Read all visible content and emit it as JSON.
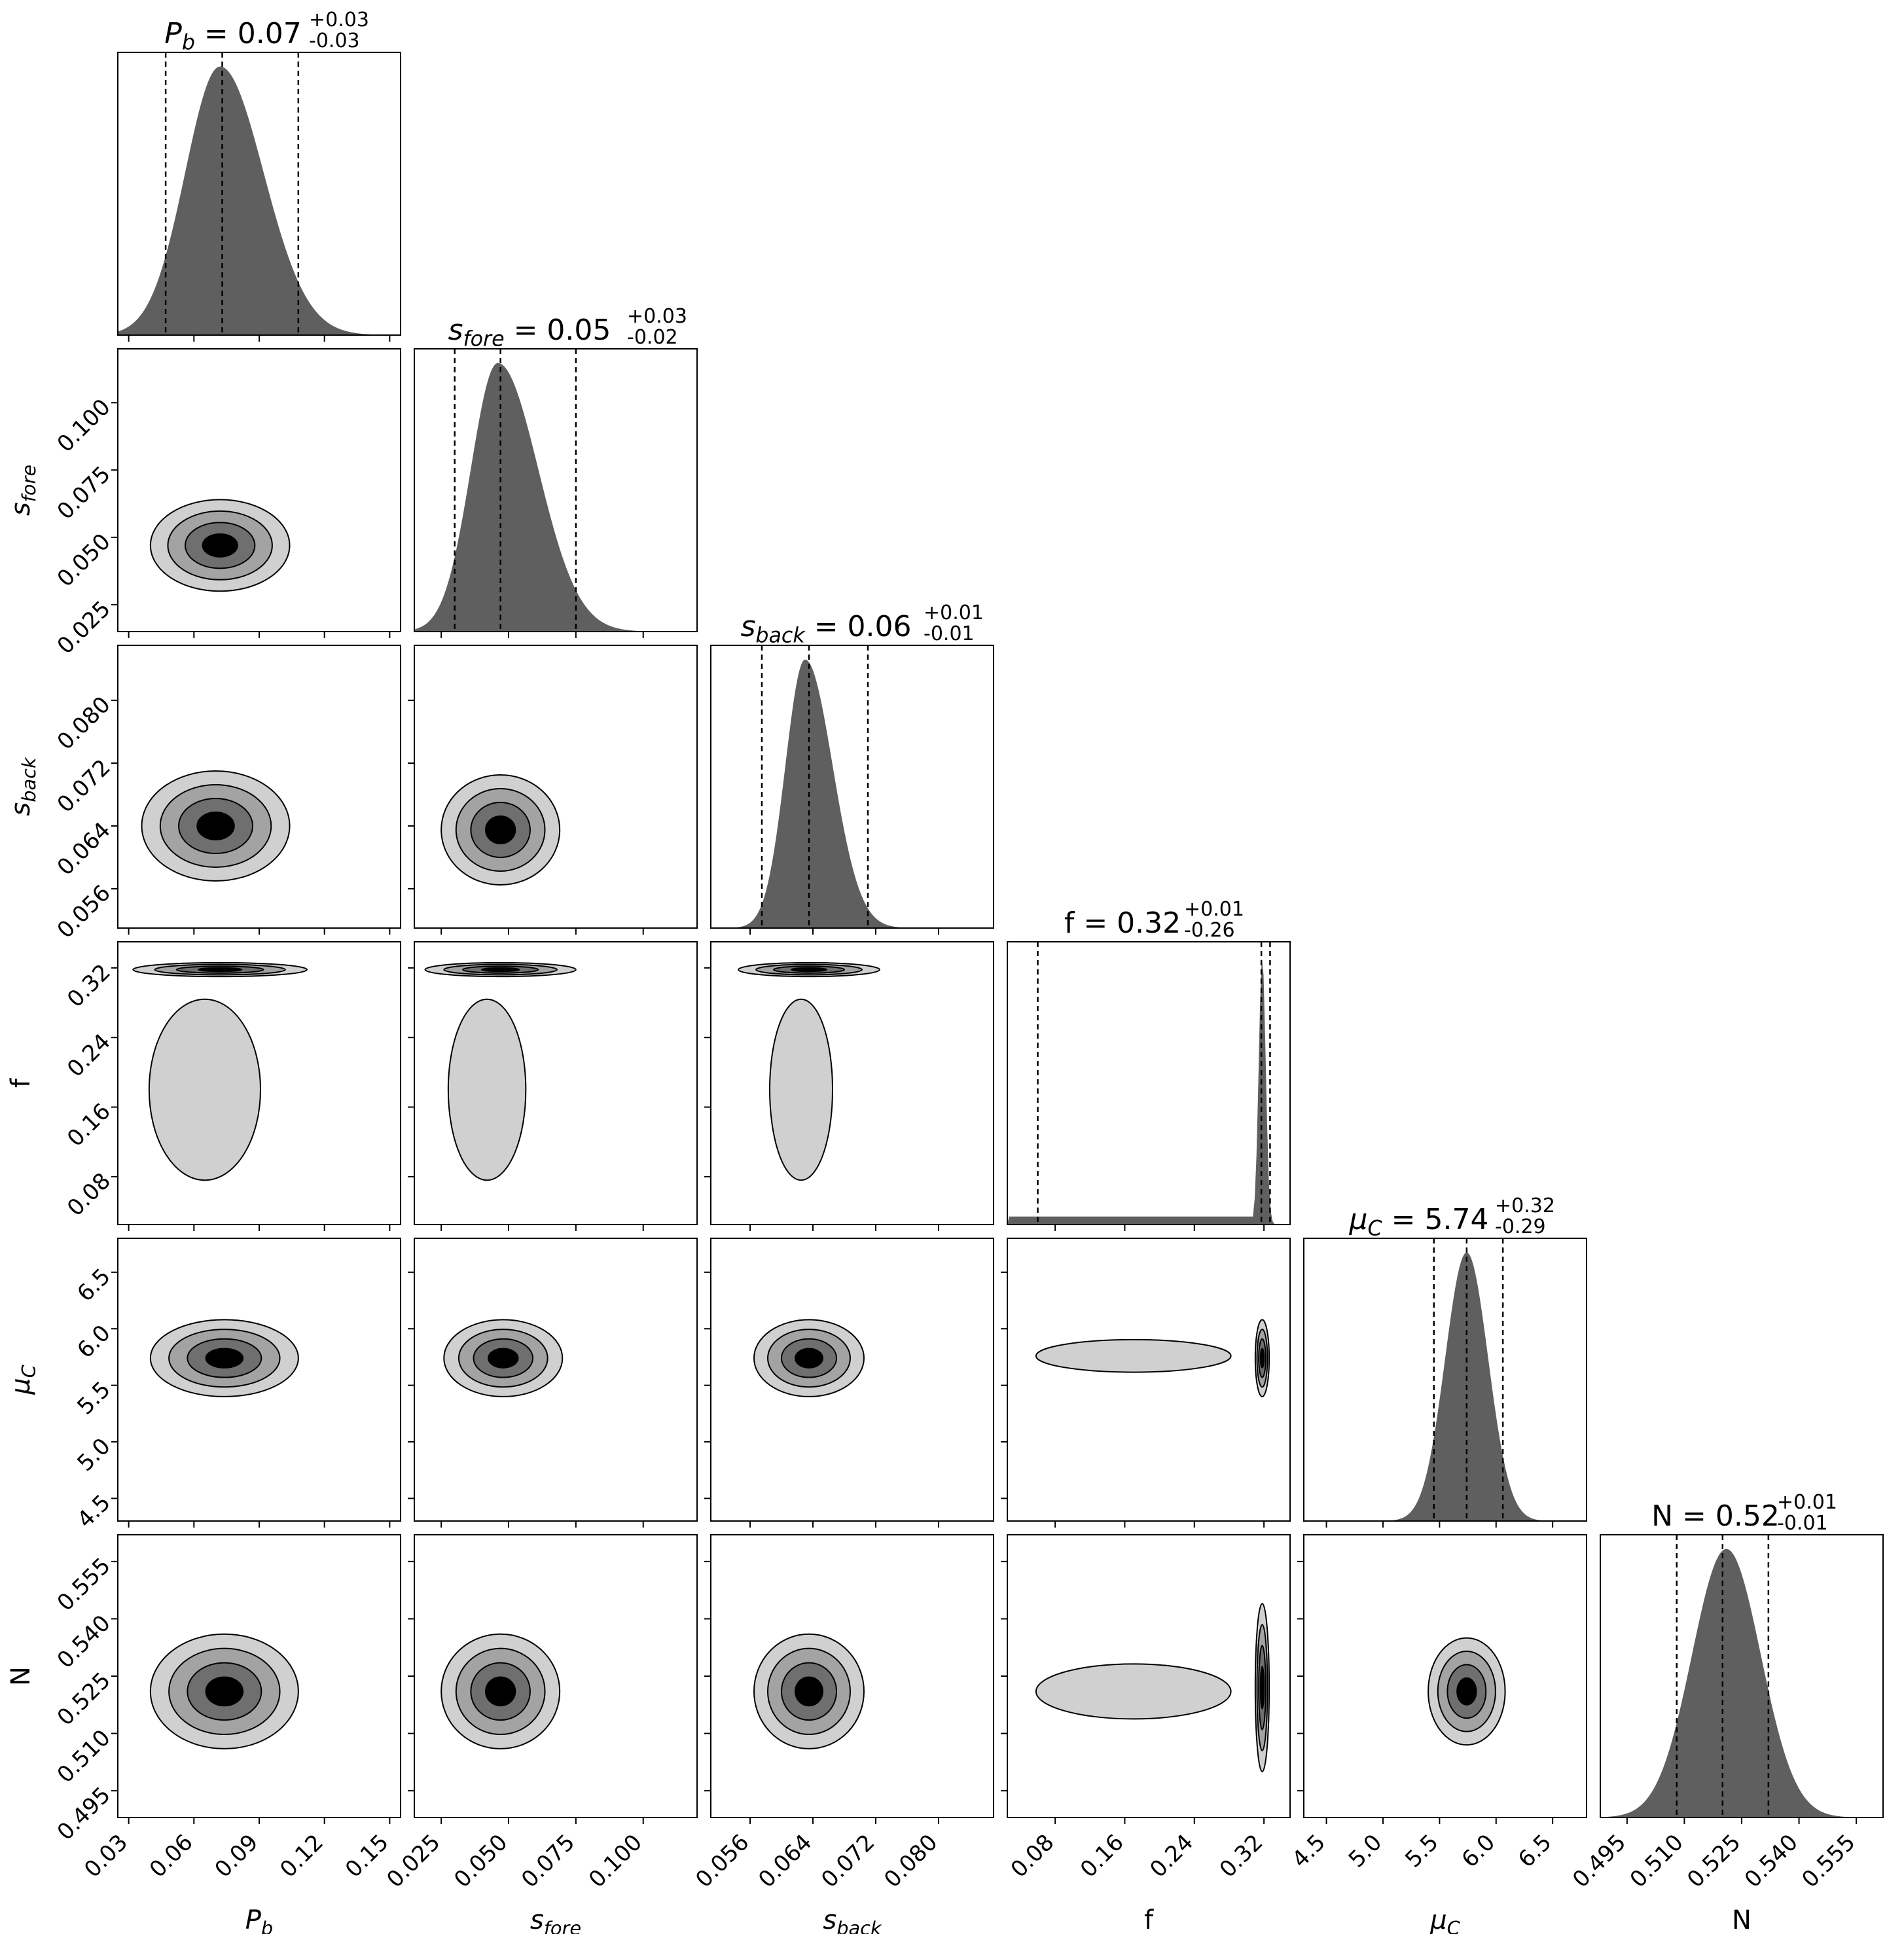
{
  "colors": {
    "hist_fill": "#5f5f5f",
    "contour_levels": [
      "#d0d0d0",
      "#a3a3a3",
      "#6f6f6f",
      "#000000"
    ],
    "contour_line": "#000000",
    "frame": "#000000",
    "background": "#ffffff"
  },
  "parameters": [
    {
      "key": "Pb",
      "axis_label": "P_b",
      "title": "P_b = 0.07",
      "median": "0.07",
      "plus": "+0.03",
      "minus": "-0.03",
      "range": [
        0.025,
        0.155
      ],
      "ticks": [
        "0.03",
        "0.06",
        "0.09",
        "0.12",
        "0.15"
      ]
    },
    {
      "key": "sfore",
      "axis_label": "s_fore",
      "title": "s_fore = 0.05",
      "median": "0.05",
      "plus": "+0.03",
      "minus": "-0.02",
      "range": [
        0.015,
        0.12
      ],
      "ticks": [
        "0.025",
        "0.050",
        "0.075",
        "0.100"
      ]
    },
    {
      "key": "sback",
      "axis_label": "s_back",
      "title": "s_back = 0.06",
      "median": "0.06",
      "plus": "+0.01",
      "minus": "-0.01",
      "range": [
        0.051,
        0.087
      ],
      "ticks": [
        "0.056",
        "0.064",
        "0.072",
        "0.080"
      ]
    },
    {
      "key": "f",
      "axis_label": "f",
      "title": "f = 0.32",
      "median": "0.32",
      "plus": "+0.01",
      "minus": "-0.26",
      "range": [
        0.025,
        0.35
      ],
      "ticks": [
        "0.08",
        "0.16",
        "0.24",
        "0.32"
      ]
    },
    {
      "key": "muC",
      "axis_label": "μ_C",
      "title": "μ_C = 5.74",
      "median": "5.74",
      "plus": "+0.32",
      "minus": "-0.29",
      "range": [
        4.3,
        6.8
      ],
      "ticks": [
        "4.5",
        "5.0",
        "5.5",
        "6.0",
        "6.5"
      ]
    },
    {
      "key": "N",
      "axis_label": "N",
      "title": "N = 0.52",
      "median": "0.52",
      "plus": "+0.01",
      "minus": "-0.01",
      "range": [
        0.488,
        0.562
      ],
      "ticks": [
        "0.495",
        "0.510",
        "0.525",
        "0.540",
        "0.555"
      ]
    }
  ],
  "chart_data": {
    "type": "corner",
    "grid": false,
    "legend": "none",
    "histograms": [
      {
        "param": "Pb",
        "peak": 0.072,
        "sigma_lo": 0.016,
        "sigma_hi": 0.02,
        "quantiles": [
          0.047,
          0.073,
          0.108
        ]
      },
      {
        "param": "sfore",
        "peak": 0.046,
        "sigma_lo": 0.01,
        "sigma_hi": 0.015,
        "quantiles": [
          0.03,
          0.047,
          0.075
        ]
      },
      {
        "param": "sback",
        "peak": 0.063,
        "sigma_lo": 0.0025,
        "sigma_hi": 0.0035,
        "quantiles": [
          0.0575,
          0.0635,
          0.071
        ]
      },
      {
        "param": "f",
        "peak": 0.318,
        "sigma_lo": 0.004,
        "sigma_hi": 0.004,
        "floor": 0.03,
        "quantiles": [
          0.06,
          0.317,
          0.327
        ]
      },
      {
        "param": "muC",
        "peak": 5.74,
        "sigma_lo": 0.19,
        "sigma_hi": 0.19,
        "quantiles": [
          5.45,
          5.74,
          6.06
        ]
      },
      {
        "param": "N",
        "peak": 0.521,
        "sigma_lo": 0.009,
        "sigma_hi": 0.009,
        "quantiles": [
          0.508,
          0.52,
          0.532
        ]
      }
    ],
    "contours": [
      {
        "x": "Pb",
        "y": "sfore",
        "center": [
          0.072,
          0.047
        ],
        "sd": [
          0.016,
          0.0085
        ]
      },
      {
        "x": "Pb",
        "y": "sback",
        "center": [
          0.07,
          0.064
        ],
        "sd": [
          0.017,
          0.0035
        ]
      },
      {
        "x": "sfore",
        "y": "sback",
        "center": [
          0.047,
          0.0635
        ],
        "sd": [
          0.011,
          0.0035
        ]
      },
      {
        "x": "Pb",
        "y": "f",
        "center": [
          0.072,
          0.318
        ],
        "sd": [
          0.02,
          0.004
        ],
        "tail": [
          0.065,
          0.18,
          0.016,
          0.065
        ]
      },
      {
        "x": "sfore",
        "y": "f",
        "center": [
          0.047,
          0.318
        ],
        "sd": [
          0.014,
          0.004
        ],
        "tail": [
          0.042,
          0.18,
          0.009,
          0.065
        ]
      },
      {
        "x": "sback",
        "y": "f",
        "center": [
          0.0635,
          0.318
        ],
        "sd": [
          0.0045,
          0.004
        ],
        "tail": [
          0.0625,
          0.18,
          0.0025,
          0.065
        ]
      },
      {
        "x": "Pb",
        "y": "muC",
        "center": [
          0.074,
          5.74
        ],
        "sd": [
          0.017,
          0.17
        ]
      },
      {
        "x": "sfore",
        "y": "muC",
        "center": [
          0.048,
          5.74
        ],
        "sd": [
          0.011,
          0.17
        ]
      },
      {
        "x": "sback",
        "y": "muC",
        "center": [
          0.0635,
          5.74
        ],
        "sd": [
          0.0035,
          0.17
        ]
      },
      {
        "x": "f",
        "y": "muC",
        "center": [
          0.318,
          5.74
        ],
        "sd": [
          0.004,
          0.17
        ],
        "tail": [
          0.17,
          5.76,
          0.07,
          0.09
        ]
      },
      {
        "x": "Pb",
        "y": "N",
        "center": [
          0.074,
          0.521
        ],
        "sd": [
          0.017,
          0.0075
        ]
      },
      {
        "x": "sfore",
        "y": "N",
        "center": [
          0.047,
          0.521
        ],
        "sd": [
          0.011,
          0.0075
        ]
      },
      {
        "x": "sback",
        "y": "N",
        "center": [
          0.0635,
          0.521
        ],
        "sd": [
          0.0035,
          0.0075
        ]
      },
      {
        "x": "f",
        "y": "N",
        "center": [
          0.318,
          0.522
        ],
        "sd": [
          0.004,
          0.011
        ],
        "tail": [
          0.17,
          0.521,
          0.07,
          0.0045
        ]
      },
      {
        "x": "muC",
        "y": "N",
        "center": [
          5.74,
          0.521
        ],
        "sd": [
          0.17,
          0.007
        ]
      }
    ]
  }
}
